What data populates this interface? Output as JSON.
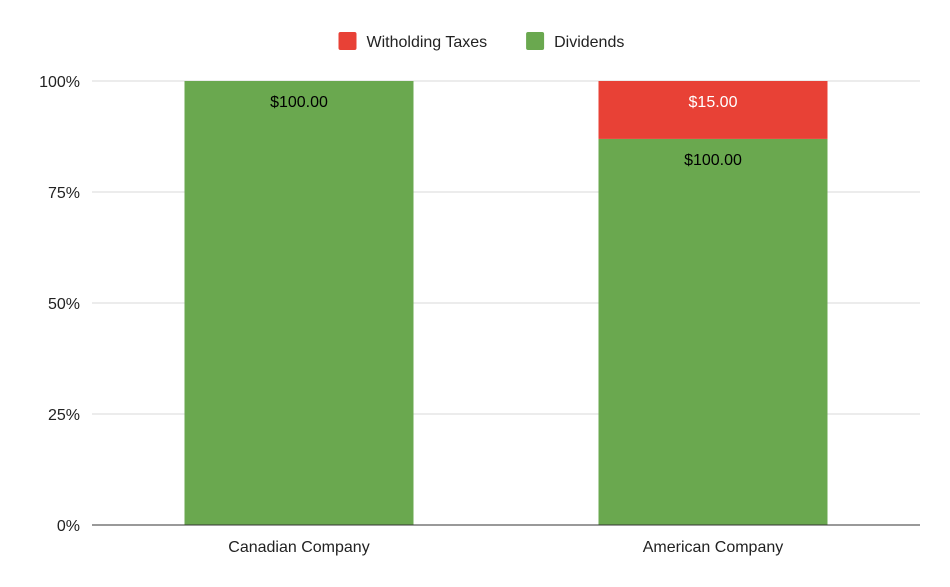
{
  "chart_data": {
    "type": "bar",
    "stacking": "percent",
    "categories": [
      "Canadian Company",
      "American Company"
    ],
    "series": [
      {
        "name": "Dividends",
        "color": "#6aa84f",
        "values": [
          100,
          100
        ],
        "labels": [
          "$100.00",
          "$100.00"
        ]
      },
      {
        "name": "Witholding Taxes",
        "color": "#e84136",
        "values": [
          0,
          15
        ],
        "labels": [
          "",
          "$15.00"
        ]
      }
    ],
    "legend_order": [
      "Witholding Taxes",
      "Dividends"
    ],
    "legend_position": "top",
    "y_ticks": [
      "0%",
      "25%",
      "50%",
      "75%",
      "100%"
    ],
    "ylim": [
      0,
      100
    ],
    "grid": true,
    "label_colors": {
      "Dividends": "#000000",
      "Witholding Taxes": "#ffffff"
    }
  }
}
